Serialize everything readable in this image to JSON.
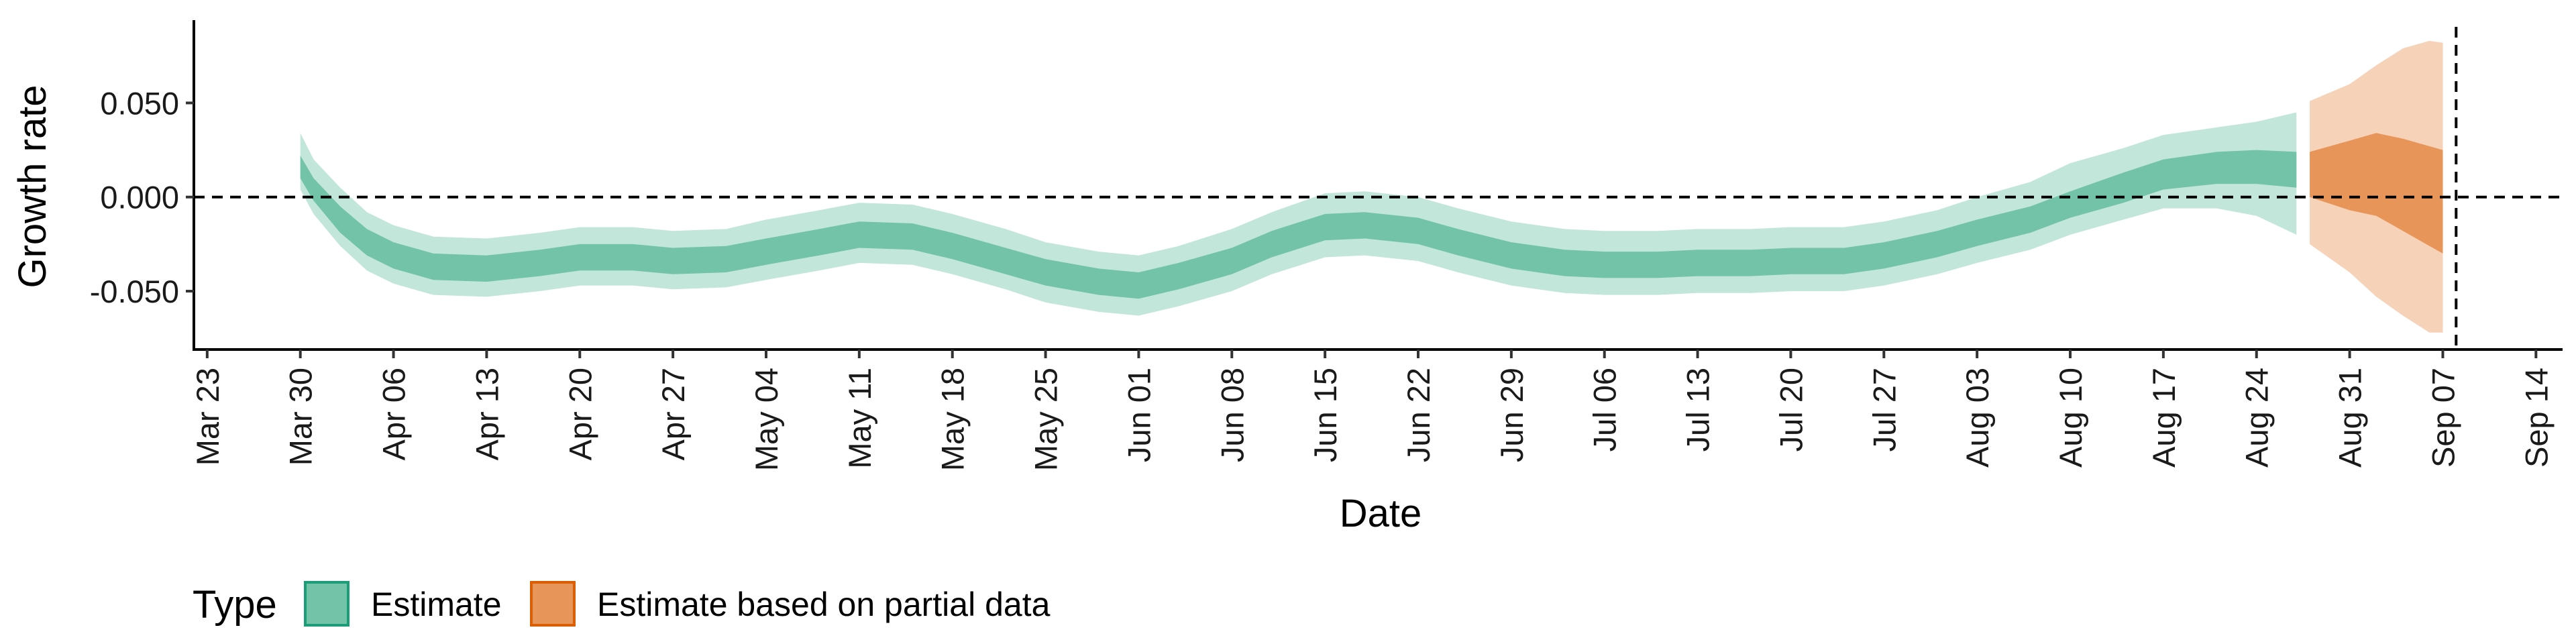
{
  "chart_data": {
    "type": "area",
    "xlabel": "Date",
    "ylabel": "Growth rate",
    "x_ticks": [
      "Mar 23",
      "Mar 30",
      "Apr 06",
      "Apr 13",
      "Apr 20",
      "Apr 27",
      "May 04",
      "May 11",
      "May 18",
      "May 25",
      "Jun 01",
      "Jun 08",
      "Jun 15",
      "Jun 22",
      "Jun 29",
      "Jul 06",
      "Jul 13",
      "Jul 20",
      "Jul 27",
      "Aug 03",
      "Aug 10",
      "Aug 17",
      "Aug 24",
      "Aug 31",
      "Sep 07",
      "Sep 14"
    ],
    "y_ticks": [
      "-0.050",
      "0.000",
      "0.050"
    ],
    "y_tick_values": [
      -0.05,
      0.0,
      0.05
    ],
    "ylim": [
      -0.081,
      0.094
    ],
    "xlim_days": [
      -1,
      177
    ],
    "reference_line_y": 0,
    "vertical_line_day": 169,
    "legend": {
      "title": "Type",
      "position": "bottom",
      "entries": [
        {
          "label": "Estimate",
          "color": "#66c2a5"
        },
        {
          "label": "Estimate based on partial data",
          "color": "#e8955a"
        }
      ]
    },
    "colors": {
      "estimate_inner": "#72c3a8",
      "estimate_outer": "#c2e6da",
      "partial_inner": "#e8955a",
      "partial_outer": "#f6d2b9"
    },
    "series": [
      {
        "name": "Estimate",
        "x": [
          "Mar 30",
          "Mar 31",
          "Apr 02",
          "Apr 04",
          "Apr 06",
          "Apr 09",
          "Apr 13",
          "Apr 17",
          "Apr 20",
          "Apr 24",
          "Apr 27",
          "May 01",
          "May 04",
          "May 08",
          "May 11",
          "May 15",
          "May 18",
          "May 22",
          "May 25",
          "May 29",
          "Jun 01",
          "Jun 04",
          "Jun 08",
          "Jun 11",
          "Jun 15",
          "Jun 18",
          "Jun 22",
          "Jun 25",
          "Jun 29",
          "Jul 03",
          "Jul 06",
          "Jul 10",
          "Jul 13",
          "Jul 17",
          "Jul 20",
          "Jul 24",
          "Jul 27",
          "Jul 31",
          "Aug 03",
          "Aug 07",
          "Aug 10",
          "Aug 14",
          "Aug 17",
          "Aug 21",
          "Aug 24",
          "Aug 27"
        ],
        "median": [
          0.016,
          0.004,
          -0.012,
          -0.024,
          -0.031,
          -0.037,
          -0.038,
          -0.035,
          -0.032,
          -0.032,
          -0.034,
          -0.033,
          -0.029,
          -0.024,
          -0.02,
          -0.021,
          -0.026,
          -0.034,
          -0.04,
          -0.045,
          -0.047,
          -0.042,
          -0.034,
          -0.025,
          -0.016,
          -0.015,
          -0.018,
          -0.024,
          -0.031,
          -0.035,
          -0.036,
          -0.036,
          -0.035,
          -0.035,
          -0.034,
          -0.034,
          -0.031,
          -0.025,
          -0.019,
          -0.012,
          -0.004,
          0.005,
          0.012,
          0.016,
          0.017,
          0.016
        ],
        "inner_lower": [
          0.01,
          -0.002,
          -0.019,
          -0.031,
          -0.038,
          -0.044,
          -0.045,
          -0.042,
          -0.039,
          -0.039,
          -0.041,
          -0.04,
          -0.036,
          -0.031,
          -0.027,
          -0.028,
          -0.033,
          -0.041,
          -0.047,
          -0.052,
          -0.054,
          -0.049,
          -0.041,
          -0.032,
          -0.023,
          -0.022,
          -0.025,
          -0.031,
          -0.038,
          -0.042,
          -0.043,
          -0.043,
          -0.042,
          -0.042,
          -0.041,
          -0.041,
          -0.038,
          -0.032,
          -0.026,
          -0.019,
          -0.011,
          -0.003,
          0.004,
          0.007,
          0.007,
          0.005
        ],
        "inner_upper": [
          0.022,
          0.01,
          -0.005,
          -0.017,
          -0.024,
          -0.03,
          -0.031,
          -0.028,
          -0.025,
          -0.025,
          -0.027,
          -0.026,
          -0.022,
          -0.017,
          -0.013,
          -0.014,
          -0.019,
          -0.027,
          -0.033,
          -0.038,
          -0.04,
          -0.035,
          -0.027,
          -0.018,
          -0.009,
          -0.008,
          -0.011,
          -0.017,
          -0.024,
          -0.028,
          -0.029,
          -0.029,
          -0.028,
          -0.028,
          -0.027,
          -0.027,
          -0.024,
          -0.018,
          -0.012,
          -0.005,
          0.003,
          0.013,
          0.02,
          0.024,
          0.025,
          0.024
        ],
        "outer_lower": [
          0.004,
          -0.009,
          -0.026,
          -0.039,
          -0.046,
          -0.052,
          -0.053,
          -0.05,
          -0.047,
          -0.047,
          -0.049,
          -0.048,
          -0.044,
          -0.039,
          -0.035,
          -0.036,
          -0.041,
          -0.049,
          -0.056,
          -0.061,
          -0.063,
          -0.058,
          -0.05,
          -0.041,
          -0.032,
          -0.031,
          -0.034,
          -0.04,
          -0.047,
          -0.051,
          -0.052,
          -0.052,
          -0.051,
          -0.051,
          -0.05,
          -0.05,
          -0.047,
          -0.041,
          -0.035,
          -0.028,
          -0.02,
          -0.012,
          -0.006,
          -0.006,
          -0.01,
          -0.02
        ],
        "outer_upper": [
          0.034,
          0.02,
          0.005,
          -0.008,
          -0.015,
          -0.021,
          -0.022,
          -0.019,
          -0.016,
          -0.016,
          -0.018,
          -0.017,
          -0.012,
          -0.007,
          -0.003,
          -0.004,
          -0.009,
          -0.017,
          -0.024,
          -0.029,
          -0.031,
          -0.026,
          -0.017,
          -0.008,
          0.002,
          0.003,
          0.0,
          -0.006,
          -0.013,
          -0.017,
          -0.018,
          -0.018,
          -0.017,
          -0.017,
          -0.016,
          -0.016,
          -0.013,
          -0.007,
          0.0,
          0.008,
          0.018,
          0.026,
          0.033,
          0.037,
          0.04,
          0.045
        ]
      },
      {
        "name": "Estimate based on partial data",
        "x": [
          "Aug 28",
          "Aug 31",
          "Sep 02",
          "Sep 04",
          "Sep 06",
          "Sep 07"
        ],
        "median": [
          0.012,
          0.013,
          0.01,
          0.005,
          0.0,
          -0.002
        ],
        "inner_lower": [
          0.0,
          -0.007,
          -0.01,
          -0.018,
          -0.026,
          -0.03
        ],
        "inner_upper": [
          0.024,
          0.03,
          0.034,
          0.031,
          0.027,
          0.025
        ],
        "outer_lower": [
          -0.025,
          -0.04,
          -0.053,
          -0.063,
          -0.072,
          -0.072
        ],
        "outer_upper": [
          0.051,
          0.06,
          0.07,
          0.079,
          0.083,
          0.082
        ]
      }
    ]
  }
}
